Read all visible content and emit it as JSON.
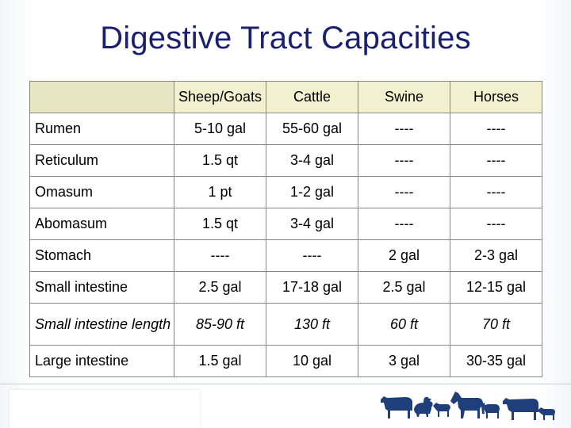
{
  "title": "Digestive Tract Capacities",
  "table": {
    "columns": [
      "",
      "Sheep/Goats",
      "Cattle",
      "Swine",
      "Horses"
    ],
    "rows": [
      {
        "label": "Rumen",
        "cells": [
          "5-10 gal",
          "55-60 gal",
          "----",
          "----"
        ]
      },
      {
        "label": "Reticulum",
        "cells": [
          "1.5 qt",
          "3-4 gal",
          "----",
          "----"
        ]
      },
      {
        "label": "Omasum",
        "cells": [
          "1 pt",
          "1-2 gal",
          "----",
          "----"
        ]
      },
      {
        "label": "Abomasum",
        "cells": [
          "1.5 qt",
          "3-4 gal",
          "----",
          "----"
        ]
      },
      {
        "label": "Stomach",
        "cells": [
          "----",
          "----",
          "2 gal",
          "2-3 gal"
        ]
      },
      {
        "label": "Small intestine",
        "cells": [
          "2.5 gal",
          "17-18 gal",
          "2.5 gal",
          "12-15 gal"
        ]
      },
      {
        "label": "Small intestine length",
        "cells": [
          "85-90 ft",
          "130 ft",
          "60 ft",
          "70 ft"
        ]
      },
      {
        "label": "Large intestine",
        "cells": [
          "1.5 gal",
          "10 gal",
          "3 gal",
          "30-35 gal"
        ]
      }
    ]
  },
  "colors": {
    "title": "#1a1f6e",
    "header_fill": "#f2f0cf",
    "animal_silhouettes": "#1e3f7a"
  },
  "footer": {
    "logo_icon": "livestock-silhouettes-icon"
  }
}
